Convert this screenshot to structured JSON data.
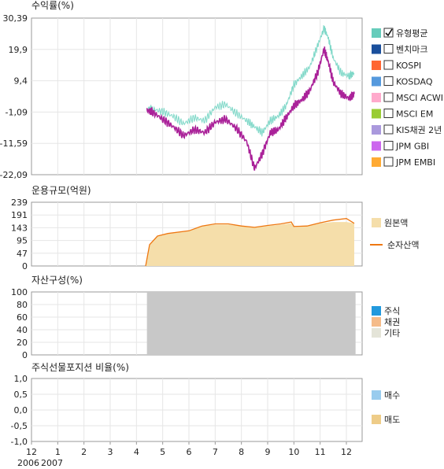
{
  "chart_data": [
    {
      "type": "line",
      "title": "수익률(%)",
      "ylim": [
        -22.09,
        30.39
      ],
      "yticks": [
        "30,39",
        "19,9",
        "9,4",
        "-1,09",
        "-11,59",
        "-22,09"
      ],
      "grid": true,
      "legend_position": "right",
      "legend": [
        {
          "label": "유형평균",
          "color": "#66ccbb",
          "checked": true
        },
        {
          "label": "벤치마크",
          "color": "#1a4f9c",
          "checked": false
        },
        {
          "label": "KOSPI",
          "color": "#ff6633",
          "checked": false
        },
        {
          "label": "KOSDAQ",
          "color": "#5599dd",
          "checked": false
        },
        {
          "label": "MSCI ACWI",
          "color": "#ffaacc",
          "checked": false
        },
        {
          "label": "MSCI EM",
          "color": "#99cc33",
          "checked": false
        },
        {
          "label": "KIS채권 2년",
          "color": "#aa99dd",
          "checked": false
        },
        {
          "label": "JPM GBI",
          "color": "#cc66ee",
          "checked": false
        },
        {
          "label": "JPM EMBI",
          "color": "#ffaa33",
          "checked": false
        }
      ],
      "series": [
        {
          "name": "유형평균",
          "color": "#7fd8c8",
          "x": [
            4.4,
            4.6,
            5.0,
            5.4,
            5.8,
            6.2,
            6.6,
            7.0,
            7.4,
            7.8,
            8.2,
            8.5,
            8.8,
            9.1,
            9.4,
            9.7,
            10.0,
            10.3,
            10.6,
            10.9,
            11.15,
            11.3,
            11.5,
            11.8,
            12.1,
            12.3
          ],
          "y": [
            -0.5,
            0.0,
            -1.0,
            -2.5,
            -5.0,
            -3.0,
            -4.0,
            0.5,
            1.5,
            -1.5,
            -4.0,
            -6.0,
            -8.0,
            -4.0,
            -2.5,
            1.0,
            8.0,
            11.0,
            14.0,
            21.0,
            27.0,
            24.0,
            17.0,
            12.0,
            11.0,
            12.0
          ]
        },
        {
          "name": "",
          "color": "#aa2299",
          "x": [
            4.4,
            4.6,
            5.0,
            5.4,
            5.8,
            6.2,
            6.6,
            7.0,
            7.4,
            7.8,
            8.2,
            8.5,
            8.8,
            9.1,
            9.4,
            9.7,
            10.0,
            10.3,
            10.6,
            10.9,
            11.15,
            11.3,
            11.5,
            11.8,
            12.1,
            12.3
          ],
          "y": [
            -0.5,
            -1.0,
            -3.5,
            -6.0,
            -9.0,
            -7.0,
            -8.0,
            -4.5,
            -3.5,
            -6.5,
            -11.0,
            -20.0,
            -15.0,
            -8.0,
            -7.0,
            -3.0,
            1.0,
            3.0,
            6.0,
            12.0,
            20.0,
            16.0,
            9.0,
            5.0,
            3.5,
            5.0
          ]
        }
      ]
    },
    {
      "type": "area",
      "title": "운용규모(억원)",
      "ylim": [
        0,
        239
      ],
      "yticks": [
        "239",
        "191",
        "143",
        "95",
        "47",
        "0"
      ],
      "legend": [
        {
          "label": "원본액",
          "color": "#f5deaa",
          "kind": "box"
        },
        {
          "label": "순자산액",
          "color": "#ee7711",
          "kind": "line"
        }
      ],
      "series": [
        {
          "name": "원본액",
          "color": "#f5deaa",
          "x": [
            4.35,
            4.5,
            4.8,
            5.2,
            6.0,
            6.5,
            7.0,
            7.5,
            8.0,
            8.5,
            9.0,
            9.5,
            9.9,
            10.0,
            10.5,
            11.0,
            11.5,
            12.0,
            12.3
          ],
          "y": [
            0,
            80,
            110,
            120,
            130,
            150,
            155,
            155,
            150,
            145,
            150,
            155,
            160,
            145,
            150,
            160,
            165,
            165,
            160
          ]
        },
        {
          "name": "순자산액",
          "color": "#ee7711",
          "x": [
            4.35,
            4.5,
            4.8,
            5.2,
            6.0,
            6.5,
            7.0,
            7.5,
            8.0,
            8.5,
            9.0,
            9.5,
            9.9,
            10.0,
            10.5,
            11.0,
            11.5,
            12.0,
            12.3
          ],
          "y": [
            0,
            80,
            112,
            122,
            132,
            150,
            158,
            158,
            150,
            145,
            152,
            158,
            165,
            148,
            150,
            162,
            172,
            178,
            160
          ]
        }
      ]
    },
    {
      "type": "area",
      "title": "자산구성(%)",
      "ylim": [
        0,
        100
      ],
      "yticks": [
        "100",
        "80",
        "60",
        "40",
        "20",
        "0"
      ],
      "legend": [
        {
          "label": "주식",
          "color": "#2299dd",
          "kind": "box"
        },
        {
          "label": "채권",
          "color": "#f5bb88",
          "kind": "box"
        },
        {
          "label": "기타",
          "color": "#e4e4d8",
          "kind": "box"
        }
      ],
      "series": [
        {
          "name": "",
          "color": "#c8c8c8",
          "x": [
            4.4,
            12.35
          ],
          "y": [
            100,
            100
          ]
        }
      ]
    },
    {
      "type": "bar",
      "title": "주식선물포지션 비율(%)",
      "ylim": [
        -1.0,
        1.0
      ],
      "yticks": [
        "1,0",
        "0,5",
        "0,0",
        "-0,5",
        "-1,0"
      ],
      "legend": [
        {
          "label": "매수",
          "color": "#99ccee",
          "kind": "box"
        },
        {
          "label": "매도",
          "color": "#eecc88",
          "kind": "box"
        }
      ],
      "series": []
    }
  ],
  "x_axis": {
    "ticks": [
      {
        "value": 0,
        "label": "12"
      },
      {
        "value": 1,
        "label": "1"
      },
      {
        "value": 2,
        "label": "2"
      },
      {
        "value": 3,
        "label": "3"
      },
      {
        "value": 4,
        "label": "4"
      },
      {
        "value": 5,
        "label": "5"
      },
      {
        "value": 6,
        "label": "6"
      },
      {
        "value": 7,
        "label": "7"
      },
      {
        "value": 8,
        "label": "8"
      },
      {
        "value": 9,
        "label": "9"
      },
      {
        "value": 10,
        "label": "10"
      },
      {
        "value": 11,
        "label": "11"
      },
      {
        "value": 12,
        "label": "12"
      }
    ],
    "years": [
      "2006",
      "2007"
    ]
  }
}
